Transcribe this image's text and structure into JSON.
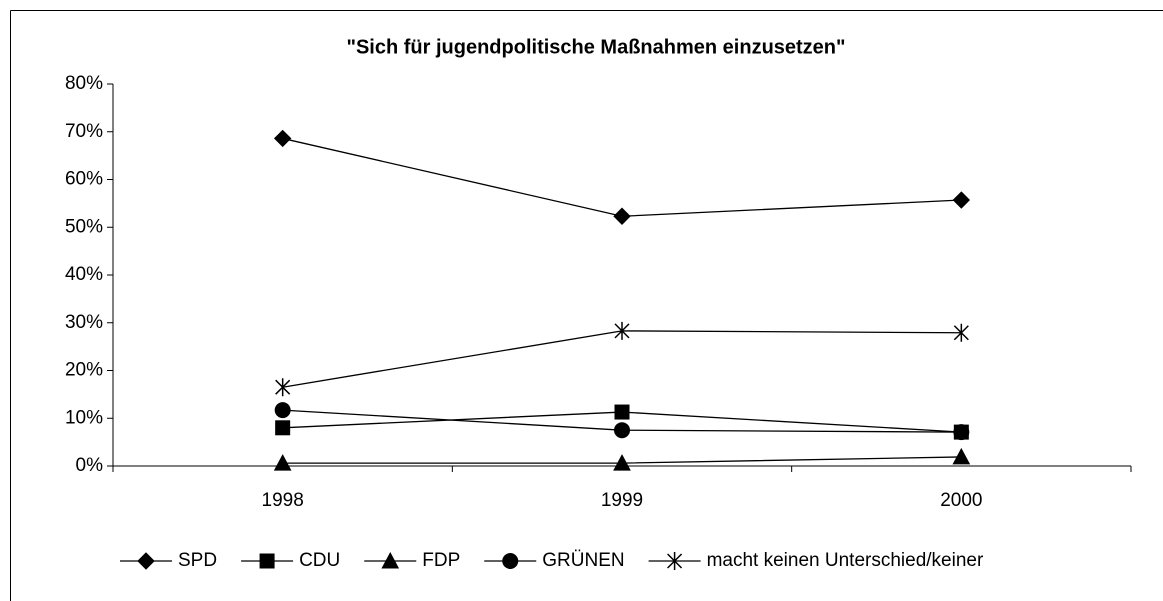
{
  "chart_data": {
    "type": "line",
    "title": "\"Sich für jugendpolitische Maßnahmen einzusetzen\"",
    "categories": [
      "1998",
      "1999",
      "2000"
    ],
    "series": [
      {
        "name": "SPD",
        "color": "#000000",
        "marker": "diamond",
        "values": [
          68.6,
          52.3,
          55.7
        ]
      },
      {
        "name": "CDU",
        "color": "#000000",
        "marker": "square",
        "values": [
          8.0,
          11.3,
          7.1
        ]
      },
      {
        "name": "FDP",
        "color": "#000000",
        "marker": "triangle",
        "values": [
          0.6,
          0.6,
          1.9
        ]
      },
      {
        "name": "GRÜNEN",
        "color": "#000000",
        "marker": "circle",
        "values": [
          11.7,
          7.5,
          7.1
        ]
      },
      {
        "name": "macht keinen Unterschied/keiner",
        "color": "#000000",
        "marker": "asterisk",
        "values": [
          16.5,
          28.3,
          27.9
        ]
      }
    ],
    "ylim": [
      0,
      80
    ],
    "yticks": [
      {
        "value": 0,
        "label": "0%"
      },
      {
        "value": 10,
        "label": "10%"
      },
      {
        "value": 20,
        "label": "20%"
      },
      {
        "value": 30,
        "label": "30%"
      },
      {
        "value": 40,
        "label": "40%"
      },
      {
        "value": 50,
        "label": "50%"
      },
      {
        "value": 60,
        "label": "60%"
      },
      {
        "value": 70,
        "label": "70%"
      },
      {
        "value": 80,
        "label": "80%"
      }
    ],
    "grid": false,
    "legend": "bottom"
  }
}
